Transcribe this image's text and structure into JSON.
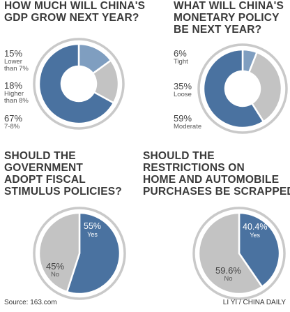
{
  "colors": {
    "blue": "#4a72a0",
    "light_blue": "#7f9ec0",
    "gray": "#c3c3c3",
    "ring": "#c9c9c9",
    "text": "#3a3a3a"
  },
  "chart_data": [
    {
      "type": "pie",
      "title": "HOW MUCH WILL CHINA'S\nGDP GROW NEXT YEAR?",
      "slices": [
        {
          "value_label": "15%",
          "label": "Lower\nthan 7%",
          "value": 15,
          "color": "#7f9ec0"
        },
        {
          "value_label": "18%",
          "label": "Higher\nthan 8%",
          "value": 18,
          "color": "#c3c3c3"
        },
        {
          "value_label": "67%",
          "label": "7-8%",
          "value": 67,
          "color": "#4a72a0"
        }
      ]
    },
    {
      "type": "pie",
      "title": "WHAT WILL CHINA'S\nMONETARY POLICY\nBE NEXT YEAR?",
      "slices": [
        {
          "value_label": "6%",
          "label": "Tight",
          "value": 6,
          "color": "#7f9ec0"
        },
        {
          "value_label": "35%",
          "label": "Loose",
          "value": 35,
          "color": "#c3c3c3"
        },
        {
          "value_label": "59%",
          "label": "Moderate",
          "value": 59,
          "color": "#4a72a0"
        }
      ]
    },
    {
      "type": "pie",
      "title": "SHOULD THE\nGOVERNMENT\nADOPT FISCAL\nSTIMULUS POLICIES?",
      "slices": [
        {
          "value_label": "55%",
          "label": "Yes",
          "value": 55,
          "color": "#4a72a0"
        },
        {
          "value_label": "45%",
          "label": "No",
          "value": 45,
          "color": "#c3c3c3"
        }
      ]
    },
    {
      "type": "pie",
      "title": "SHOULD THE\nRESTRICTIONS ON\nHOME AND AUTOMOBILE\nPURCHASES BE SCRAPPED?",
      "slices": [
        {
          "value_label": "40.4%",
          "label": "Yes",
          "value": 40.4,
          "color": "#4a72a0"
        },
        {
          "value_label": "59.6%",
          "label": "No",
          "value": 59.6,
          "color": "#c3c3c3"
        }
      ]
    }
  ],
  "footer": {
    "source": "Source: 163.com",
    "credit": "LI YI / CHINA DAILY"
  }
}
